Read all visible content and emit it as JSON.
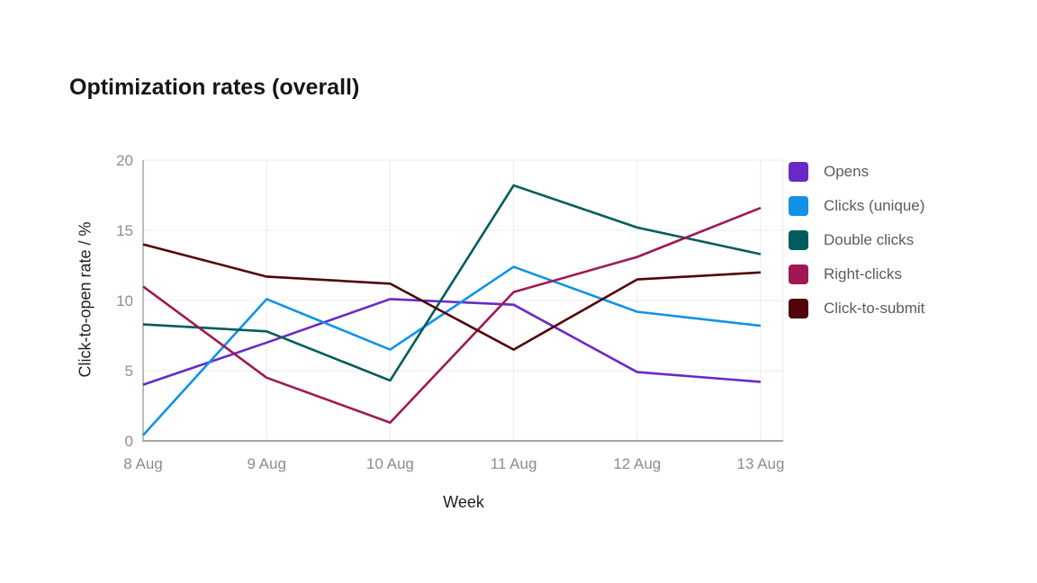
{
  "title": "Optimization rates (overall)",
  "chart_data": {
    "type": "line",
    "x": [
      "8 Aug",
      "9 Aug",
      "10 Aug",
      "11 Aug",
      "12 Aug",
      "13 Aug"
    ],
    "xlabel": "Week",
    "ylabel": "Click-to-open rate / %",
    "ylim": [
      0,
      20
    ],
    "yticks": [
      0,
      5,
      10,
      15,
      20
    ],
    "grid": true,
    "legend_position": "right",
    "series": [
      {
        "name": "Opens",
        "color": "#6929c4",
        "values": [
          4.0,
          7.0,
          10.1,
          9.7,
          4.9,
          4.2
        ]
      },
      {
        "name": "Clicks (unique)",
        "color": "#1192e8",
        "values": [
          0.4,
          10.1,
          6.5,
          12.4,
          9.2,
          8.2
        ]
      },
      {
        "name": "Double clicks",
        "color": "#005d5d",
        "values": [
          8.3,
          7.8,
          4.3,
          18.2,
          15.2,
          13.3
        ]
      },
      {
        "name": "Right-clicks",
        "color": "#9f1853",
        "values": [
          11.0,
          4.5,
          1.3,
          10.6,
          13.1,
          16.6
        ]
      },
      {
        "name": "Click-to-submit",
        "color": "#520408",
        "values": [
          14.0,
          11.7,
          11.2,
          6.5,
          11.5,
          12.0
        ]
      }
    ],
    "colors": {
      "grid": "#ececec",
      "axis": "#a5a5a5",
      "tick_text": "#8d8d8d"
    }
  }
}
